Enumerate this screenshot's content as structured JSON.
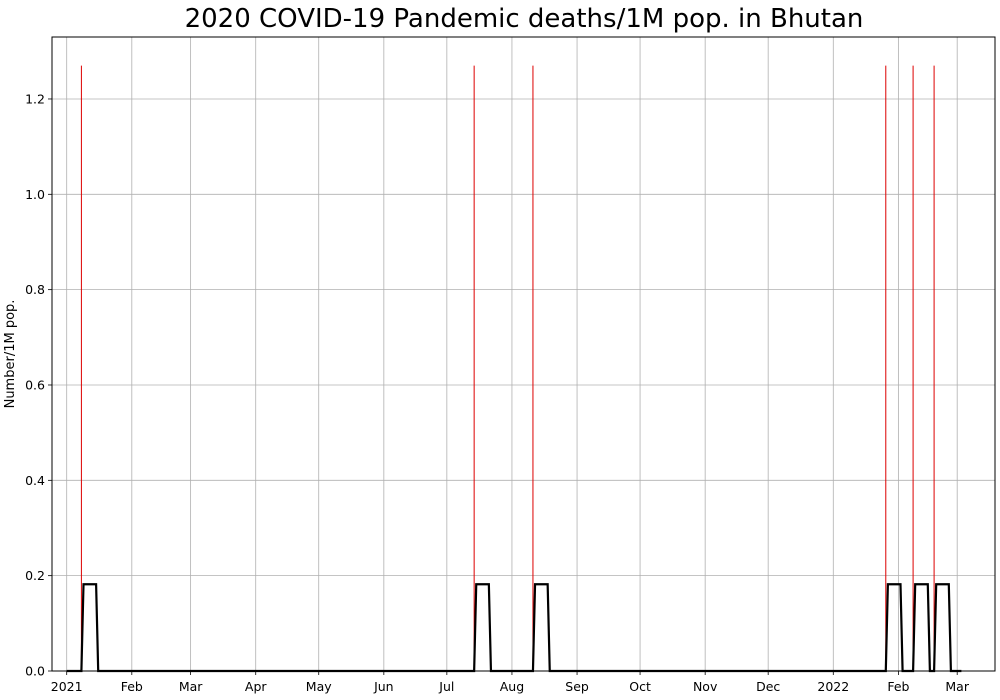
{
  "chart_data": {
    "type": "line",
    "title": "2020 COVID-19 Pandemic deaths/1M pop. in Bhutan",
    "xlabel": "",
    "ylabel": "Number/1M pop.",
    "xlim": [
      "2020-12-25",
      "2022-03-19"
    ],
    "ylim": [
      0,
      1.33
    ],
    "grid": true,
    "x_ticks": [
      {
        "date": "2021-01-01",
        "label": "2021"
      },
      {
        "date": "2021-02-01",
        "label": "Feb"
      },
      {
        "date": "2021-03-01",
        "label": "Mar"
      },
      {
        "date": "2021-04-01",
        "label": "Apr"
      },
      {
        "date": "2021-05-01",
        "label": "May"
      },
      {
        "date": "2021-06-01",
        "label": "Jun"
      },
      {
        "date": "2021-07-01",
        "label": "Jul"
      },
      {
        "date": "2021-08-01",
        "label": "Aug"
      },
      {
        "date": "2021-09-01",
        "label": "Sep"
      },
      {
        "date": "2021-10-01",
        "label": "Oct"
      },
      {
        "date": "2021-11-01",
        "label": "Nov"
      },
      {
        "date": "2021-12-01",
        "label": "Dec"
      },
      {
        "date": "2022-01-01",
        "label": "2022"
      },
      {
        "date": "2022-02-01",
        "label": "Feb"
      },
      {
        "date": "2022-03-01",
        "label": "Mar"
      }
    ],
    "y_ticks": [
      {
        "value": 0.0,
        "label": "0.0"
      },
      {
        "value": 0.2,
        "label": "0.2"
      },
      {
        "value": 0.4,
        "label": "0.4"
      },
      {
        "value": 0.6,
        "label": "0.6"
      },
      {
        "value": 0.8,
        "label": "0.8"
      },
      {
        "value": 1.0,
        "label": "1.0"
      },
      {
        "value": 1.2,
        "label": "1.2"
      }
    ],
    "series": [
      {
        "kind": "spikes",
        "color": "#dd0000",
        "points": [
          {
            "x": "2021-01-08",
            "y": 1.27
          },
          {
            "x": "2021-07-14",
            "y": 1.27
          },
          {
            "x": "2021-08-11",
            "y": 1.27
          },
          {
            "x": "2022-01-26",
            "y": 1.27
          },
          {
            "x": "2022-02-08",
            "y": 1.27
          },
          {
            "x": "2022-02-18",
            "y": 1.27
          }
        ]
      },
      {
        "kind": "line",
        "color": "#000000",
        "points": [
          {
            "x": "2021-01-01",
            "y": 0
          },
          {
            "x": "2021-01-08",
            "y": 0
          },
          {
            "x": "2021-01-09",
            "y": 0.182
          },
          {
            "x": "2021-01-15",
            "y": 0.182
          },
          {
            "x": "2021-01-16",
            "y": 0
          },
          {
            "x": "2021-07-14",
            "y": 0
          },
          {
            "x": "2021-07-15",
            "y": 0.182
          },
          {
            "x": "2021-07-21",
            "y": 0.182
          },
          {
            "x": "2021-07-22",
            "y": 0
          },
          {
            "x": "2021-08-11",
            "y": 0
          },
          {
            "x": "2021-08-12",
            "y": 0.182
          },
          {
            "x": "2021-08-18",
            "y": 0.182
          },
          {
            "x": "2021-08-19",
            "y": 0
          },
          {
            "x": "2022-01-26",
            "y": 0
          },
          {
            "x": "2022-01-27",
            "y": 0.182
          },
          {
            "x": "2022-02-02",
            "y": 0.182
          },
          {
            "x": "2022-02-03",
            "y": 0
          },
          {
            "x": "2022-02-08",
            "y": 0
          },
          {
            "x": "2022-02-09",
            "y": 0.182
          },
          {
            "x": "2022-02-15",
            "y": 0.182
          },
          {
            "x": "2022-02-16",
            "y": 0
          },
          {
            "x": "2022-02-18",
            "y": 0
          },
          {
            "x": "2022-02-19",
            "y": 0.182
          },
          {
            "x": "2022-02-25",
            "y": 0.182
          },
          {
            "x": "2022-02-26",
            "y": 0
          },
          {
            "x": "2022-03-03",
            "y": 0
          }
        ]
      }
    ]
  }
}
